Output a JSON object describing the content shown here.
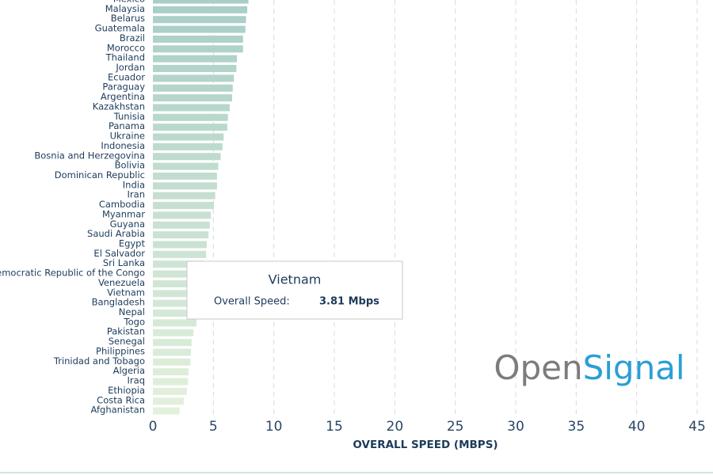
{
  "chart_data": {
    "type": "barh",
    "categories": [
      "Mexico",
      "Malaysia",
      "Belarus",
      "Guatemala",
      "Brazil",
      "Morocco",
      "Thailand",
      "Jordan",
      "Ecuador",
      "Paraguay",
      "Argentina",
      "Kazakhstan",
      "Tunisia",
      "Panama",
      "Ukraine",
      "Indonesia",
      "Bosnia and Herzegovina",
      "Bolivia",
      "Dominican Republic",
      "India",
      "Iran",
      "Cambodia",
      "Myanmar",
      "Guyana",
      "Saudi Arabia",
      "Egypt",
      "El Salvador",
      "Sri Lanka",
      "Democratic Republic of the Congo",
      "Venezuela",
      "Vietnam",
      "Bangladesh",
      "Nepal",
      "Togo",
      "Pakistan",
      "Senegal",
      "Philippines",
      "Trinidad and Tobago",
      "Algeria",
      "Iraq",
      "Ethiopia",
      "Costa Rica",
      "Afghanistan"
    ],
    "values": [
      7.9,
      7.8,
      7.7,
      7.65,
      7.45,
      7.45,
      6.95,
      6.9,
      6.7,
      6.6,
      6.55,
      6.35,
      6.2,
      6.15,
      5.85,
      5.75,
      5.6,
      5.4,
      5.3,
      5.3,
      5.15,
      5.05,
      4.8,
      4.7,
      4.6,
      4.45,
      4.4,
      4.2,
      4.0,
      3.9,
      3.81,
      3.75,
      3.7,
      3.6,
      3.35,
      3.2,
      3.15,
      3.1,
      2.95,
      2.9,
      2.8,
      2.55,
      2.2
    ],
    "color_range": [
      "#a8cec6",
      "#e3f0dc"
    ],
    "xlabel": "OVERALL SPEED (MBPS)",
    "xlim": [
      0,
      45
    ],
    "xticks": [
      0,
      5,
      10,
      15,
      20,
      25,
      30,
      35,
      40,
      45
    ],
    "grid": true,
    "tooltip": {
      "title": "Vietnam",
      "label": "Overall Speed:",
      "value_label": "3.81 Mbps"
    },
    "logo": [
      "Open",
      "Signal"
    ]
  }
}
